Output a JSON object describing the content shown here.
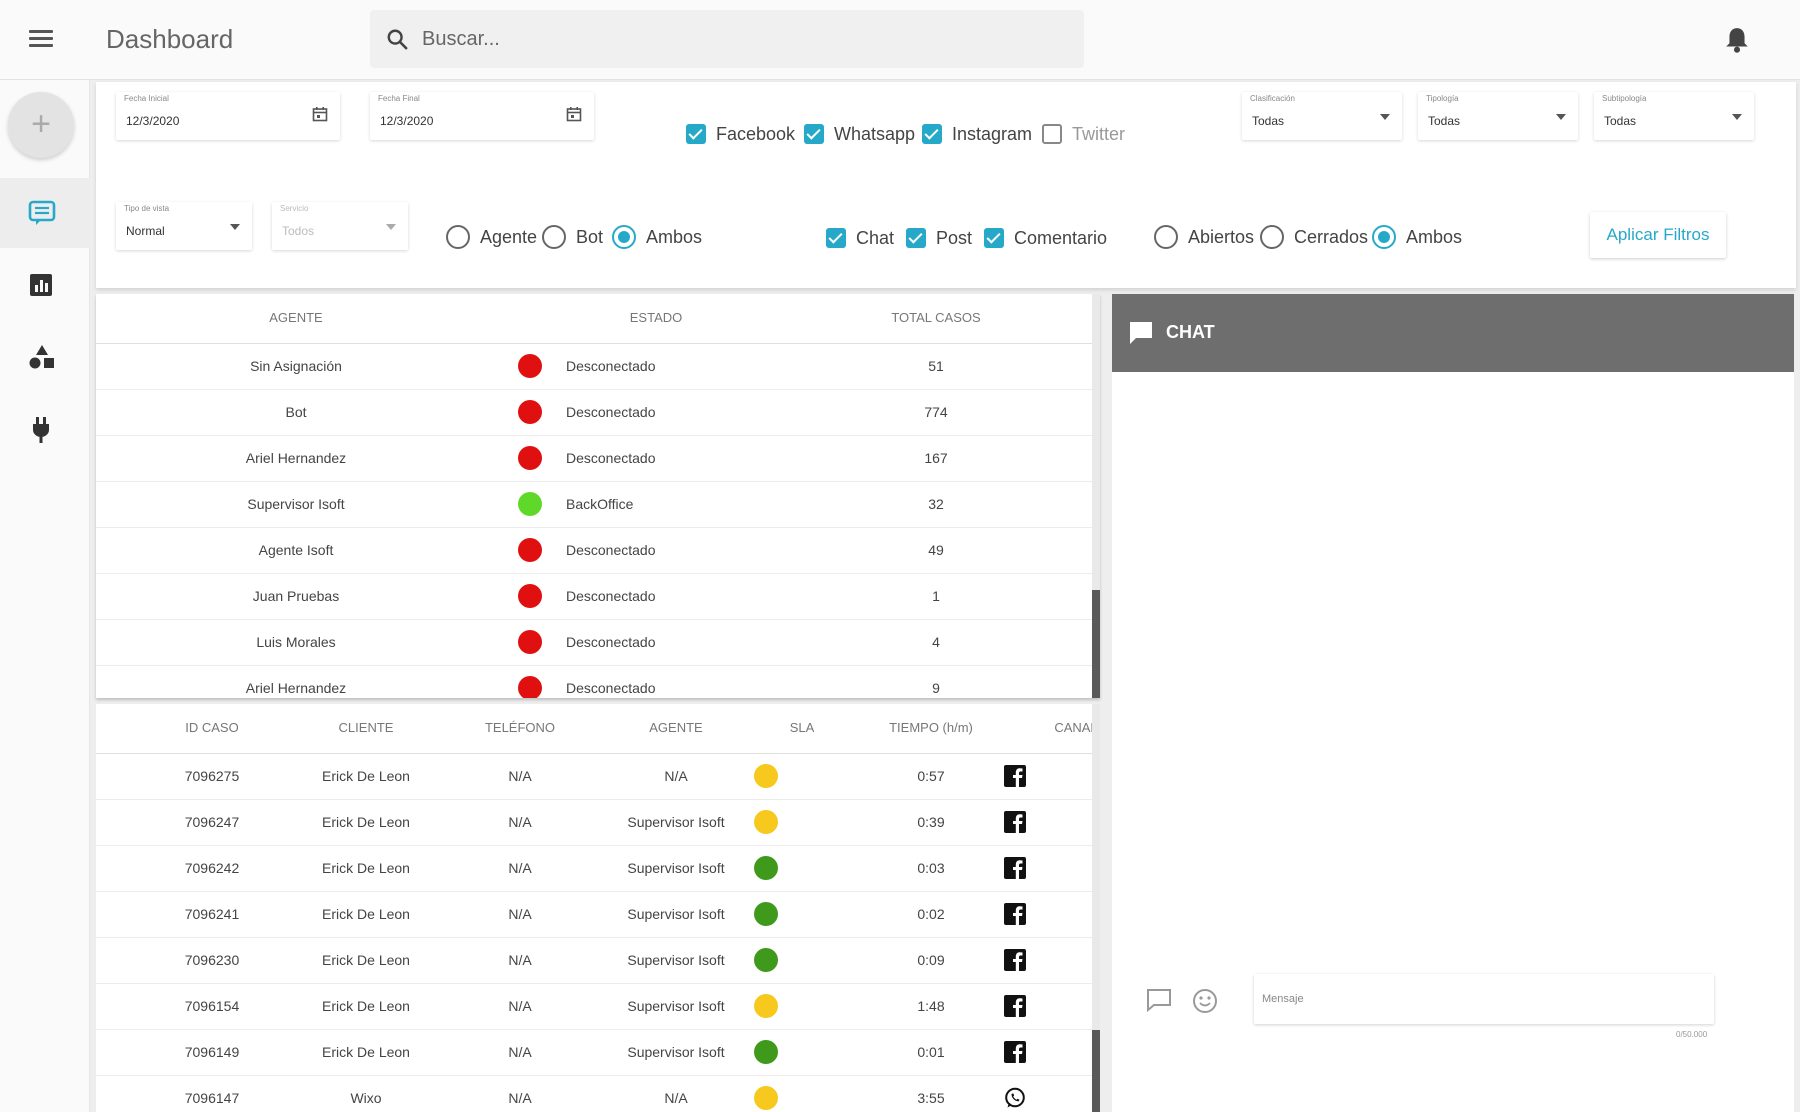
{
  "app": {
    "title": "Dashboard"
  },
  "search": {
    "placeholder": "Buscar..."
  },
  "rail": {
    "add_label": "+",
    "items": [
      {
        "icon": "chat-list-icon",
        "active": true
      },
      {
        "icon": "bar-chart-icon",
        "active": false
      },
      {
        "icon": "shapes-icon",
        "active": false
      },
      {
        "icon": "plug-icon",
        "active": false
      }
    ]
  },
  "filters": {
    "fecha_inicial": {
      "label": "Fecha Inicial",
      "value": "12/3/2020"
    },
    "fecha_final": {
      "label": "Fecha Final",
      "value": "12/3/2020"
    },
    "tipo_vista": {
      "label": "Tipo de vista",
      "value": "Normal"
    },
    "servicio": {
      "label": "Servicio",
      "value": "Todos"
    },
    "clasificacion": {
      "label": "Clasificación",
      "value": "Todas"
    },
    "tipologia": {
      "label": "Tipología",
      "value": "Todas"
    },
    "subtipologia": {
      "label": "Subtipología",
      "value": "Todas"
    },
    "channels": [
      {
        "label": "Facebook",
        "checked": true
      },
      {
        "label": "Whatsapp",
        "checked": true
      },
      {
        "label": "Instagram",
        "checked": true
      },
      {
        "label": "Twitter",
        "checked": false
      }
    ],
    "source": [
      {
        "label": "Agente",
        "selected": false
      },
      {
        "label": "Bot",
        "selected": false
      },
      {
        "label": "Ambos",
        "selected": true
      }
    ],
    "types": [
      {
        "label": "Chat",
        "checked": true
      },
      {
        "label": "Post",
        "checked": true
      },
      {
        "label": "Comentario",
        "checked": true
      }
    ],
    "status": [
      {
        "label": "Abiertos",
        "selected": false
      },
      {
        "label": "Cerrados",
        "selected": false
      },
      {
        "label": "Ambos",
        "selected": true
      }
    ],
    "apply_label": "Aplicar Filtros"
  },
  "agents_table": {
    "headers": [
      "AGENTE",
      "ESTADO",
      "TOTAL CASOS"
    ],
    "rows": [
      {
        "agente": "Sin Asignación",
        "estado": "Desconectado",
        "color": "#e01010",
        "total": "51"
      },
      {
        "agente": "Bot",
        "estado": "Desconectado",
        "color": "#e01010",
        "total": "774"
      },
      {
        "agente": "Ariel Hernandez",
        "estado": "Desconectado",
        "color": "#e01010",
        "total": "167"
      },
      {
        "agente": "Supervisor Isoft",
        "estado": "BackOffice",
        "color": "#5fd82a",
        "total": "32"
      },
      {
        "agente": "Agente Isoft",
        "estado": "Desconectado",
        "color": "#e01010",
        "total": "49"
      },
      {
        "agente": "Juan Pruebas",
        "estado": "Desconectado",
        "color": "#e01010",
        "total": "1"
      },
      {
        "agente": "Luis Morales",
        "estado": "Desconectado",
        "color": "#e01010",
        "total": "4"
      },
      {
        "agente": "Ariel Hernandez",
        "estado": "Desconectado",
        "color": "#e01010",
        "total": "9"
      }
    ]
  },
  "cases_table": {
    "headers": [
      "ID CASO",
      "CLIENTE",
      "TELÉFONO",
      "AGENTE",
      "SLA",
      "TIEMPO (h/m)",
      "CANAL"
    ],
    "rows": [
      {
        "id": "7096275",
        "cliente": "Erick De Leon",
        "telefono": "N/A",
        "agente": "N/A",
        "sla": "#f7c81e",
        "tiempo": "0:57",
        "canal": "facebook"
      },
      {
        "id": "7096247",
        "cliente": "Erick De Leon",
        "telefono": "N/A",
        "agente": "Supervisor Isoft",
        "sla": "#f7c81e",
        "tiempo": "0:39",
        "canal": "facebook"
      },
      {
        "id": "7096242",
        "cliente": "Erick De Leon",
        "telefono": "N/A",
        "agente": "Supervisor Isoft",
        "sla": "#3f9a1c",
        "tiempo": "0:03",
        "canal": "facebook"
      },
      {
        "id": "7096241",
        "cliente": "Erick De Leon",
        "telefono": "N/A",
        "agente": "Supervisor Isoft",
        "sla": "#3f9a1c",
        "tiempo": "0:02",
        "canal": "facebook"
      },
      {
        "id": "7096230",
        "cliente": "Erick De Leon",
        "telefono": "N/A",
        "agente": "Supervisor Isoft",
        "sla": "#3f9a1c",
        "tiempo": "0:09",
        "canal": "facebook"
      },
      {
        "id": "7096154",
        "cliente": "Erick De Leon",
        "telefono": "N/A",
        "agente": "Supervisor Isoft",
        "sla": "#f7c81e",
        "tiempo": "1:48",
        "canal": "facebook"
      },
      {
        "id": "7096149",
        "cliente": "Erick De Leon",
        "telefono": "N/A",
        "agente": "Supervisor Isoft",
        "sla": "#3f9a1c",
        "tiempo": "0:01",
        "canal": "facebook"
      },
      {
        "id": "7096147",
        "cliente": "Wixo",
        "telefono": "N/A",
        "agente": "N/A",
        "sla": "#f7c81e",
        "tiempo": "3:55",
        "canal": "whatsapp"
      }
    ]
  },
  "chat": {
    "title": "CHAT",
    "message_placeholder": "Mensaje",
    "counter": "0/50.000"
  }
}
